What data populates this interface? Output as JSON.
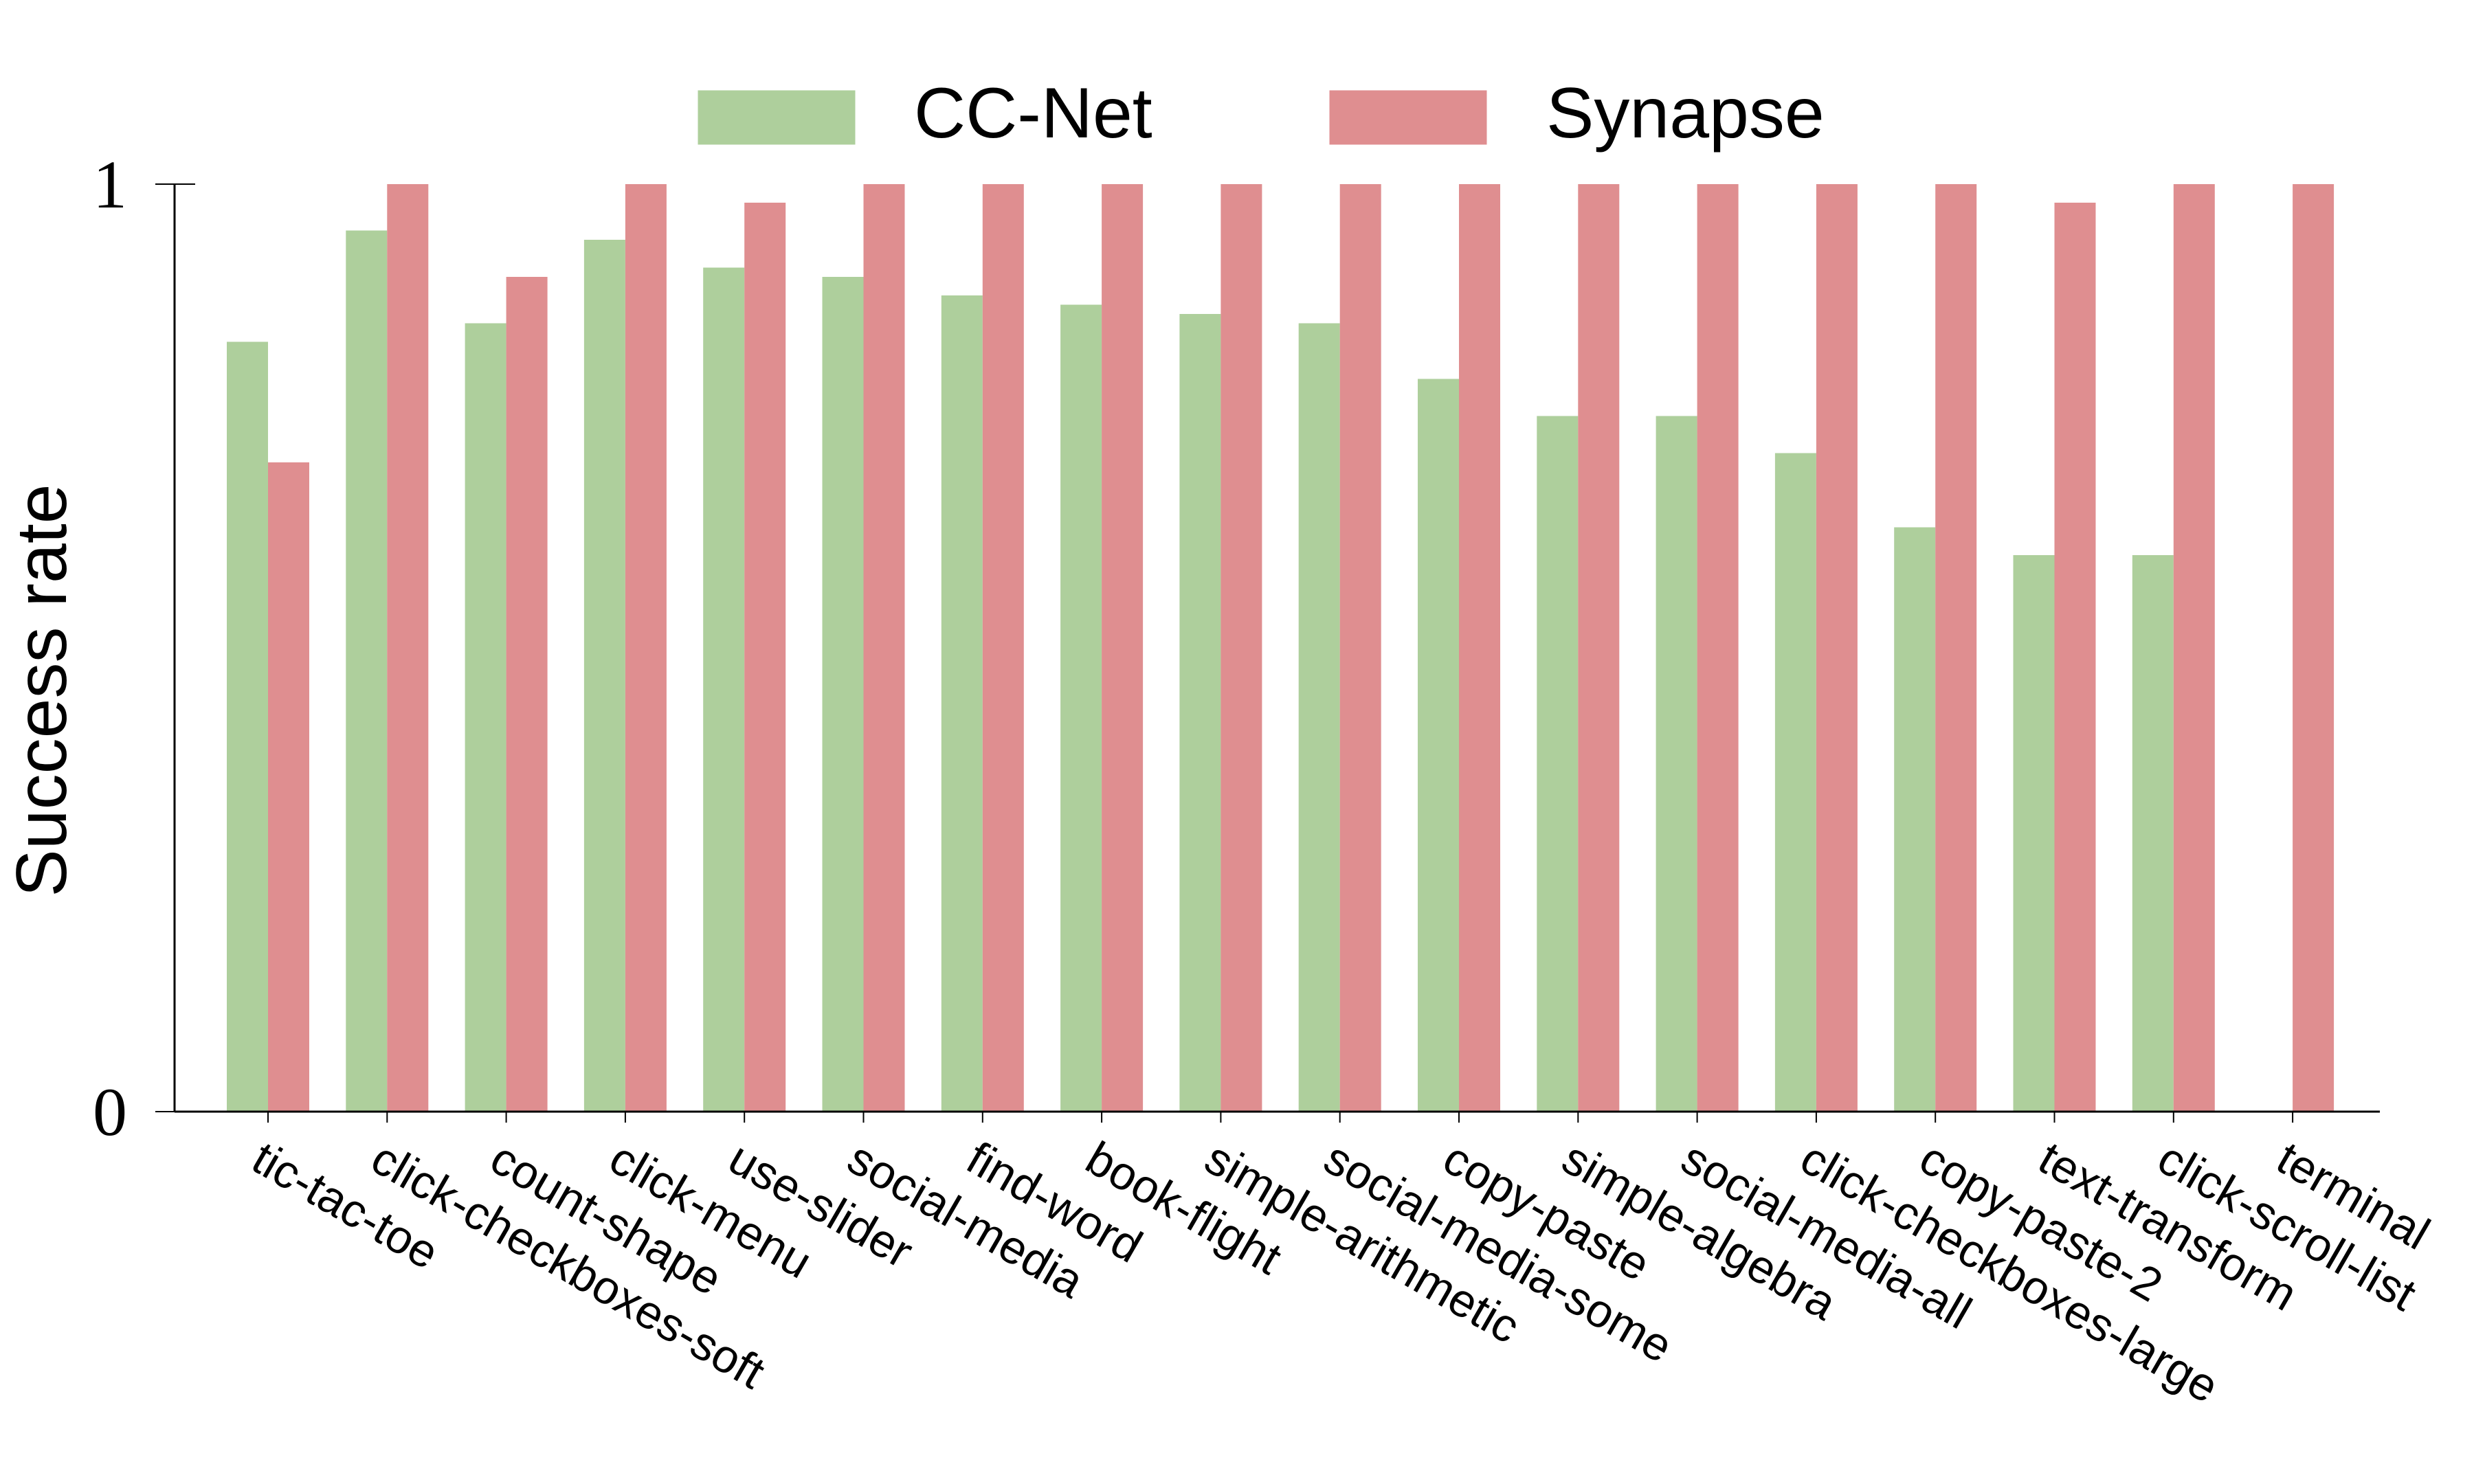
{
  "chart_data": {
    "type": "bar",
    "title": "",
    "xlabel": "",
    "ylabel": "Success rate",
    "ylim": [
      0,
      1
    ],
    "yticks": [
      0,
      1
    ],
    "grid": false,
    "legend_position": "top-center",
    "categories": [
      "tic-tac-toe",
      "click-checkboxes-soft",
      "count-shape",
      "click-menu",
      "use-slider",
      "social-media",
      "find-word",
      "book-flight",
      "simple-arithmetic",
      "social-media-some",
      "copy-paste",
      "simple-algebra",
      "social-media-all",
      "click-checkboxes-large",
      "copy-paste-2",
      "text-transform",
      "click-scroll-list",
      "terminal"
    ],
    "series": [
      {
        "name": "CC-Net",
        "color": "#aecf9c",
        "values": [
          0.83,
          0.95,
          0.85,
          0.94,
          0.91,
          0.9,
          0.88,
          0.87,
          0.86,
          0.85,
          0.79,
          0.75,
          0.75,
          0.71,
          0.63,
          0.6,
          0.6,
          0.0
        ]
      },
      {
        "name": "Synapse",
        "color": "#df8e90",
        "values": [
          0.7,
          1.0,
          0.9,
          1.0,
          0.98,
          1.0,
          1.0,
          1.0,
          1.0,
          1.0,
          1.0,
          1.0,
          1.0,
          1.0,
          1.0,
          0.98,
          1.0,
          1.0
        ]
      }
    ]
  }
}
